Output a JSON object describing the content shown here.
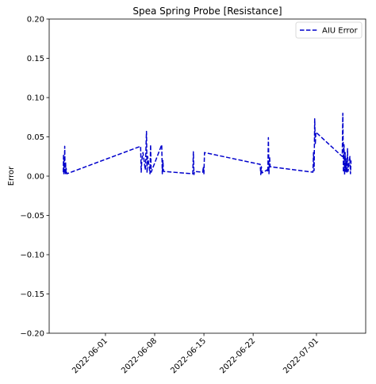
{
  "chart_data": {
    "type": "line",
    "title": "Spea Spring Probe [Resistance]",
    "xlabel": "",
    "ylabel": "Error",
    "x_axis_type": "date",
    "xlim": [
      "2022-05-24",
      "2022-07-08"
    ],
    "ylim": [
      -0.2,
      0.2
    ],
    "yticks": [
      "−0.20",
      "−0.15",
      "−0.10",
      "−0.05",
      "0.00",
      "0.05",
      "0.10",
      "0.15",
      "0.20"
    ],
    "yticks_values": [
      -0.2,
      -0.15,
      -0.1,
      -0.05,
      0.0,
      0.05,
      0.1,
      0.15,
      0.2
    ],
    "xticks": [
      "2022-06-01",
      "2022-06-08",
      "2022-06-15",
      "2022-06-22",
      "2022-07-01"
    ],
    "grid": false,
    "legend": {
      "position": "top-right",
      "entries": [
        "AIU Error"
      ]
    },
    "series": [
      {
        "name": "AIU Error",
        "color": "#0000cc",
        "line_style": "dashed",
        "x": [
          "2022-05-26 00:00",
          "2022-05-26 01:00",
          "2022-05-26 02:00",
          "2022-05-26 03:00",
          "2022-05-26 04:00",
          "2022-05-26 05:00",
          "2022-05-26 06:00",
          "2022-05-26 07:00",
          "2022-05-26 08:00",
          "2022-05-26 09:00",
          "2022-05-26 10:00",
          "2022-05-26 12:00",
          "2022-06-06 00:00",
          "2022-06-06 02:00",
          "2022-06-06 04:00",
          "2022-06-06 08:00",
          "2022-06-06 16:00",
          "2022-06-06 20:00",
          "2022-06-06 22:00",
          "2022-06-07 00:00",
          "2022-06-07 06:00",
          "2022-06-07 08:00",
          "2022-06-07 10:00",
          "2022-06-07 12:00",
          "2022-06-09 00:00",
          "2022-06-09 02:00",
          "2022-06-09 04:00",
          "2022-06-09 06:00",
          "2022-06-13 10:00",
          "2022-06-13 12:00",
          "2022-06-13 14:00",
          "2022-06-13 16:00",
          "2022-06-14 20:00",
          "2022-06-14 22:00",
          "2022-06-15 00:00",
          "2022-06-15 02:00",
          "2022-06-23 00:00",
          "2022-06-23 02:00",
          "2022-06-23 04:00",
          "2022-06-23 06:00",
          "2022-06-24 00:00",
          "2022-06-24 02:00",
          "2022-06-24 04:00",
          "2022-06-24 06:00",
          "2022-06-24 08:00",
          "2022-06-24 10:00",
          "2022-06-30 12:00",
          "2022-06-30 14:00",
          "2022-06-30 16:00",
          "2022-06-30 18:00",
          "2022-06-30 20:00",
          "2022-06-30 22:00",
          "2022-07-04 16:00",
          "2022-07-04 18:00",
          "2022-07-04 20:00",
          "2022-07-04 22:00",
          "2022-07-05 00:00",
          "2022-07-05 02:00",
          "2022-07-05 04:00",
          "2022-07-05 06:00",
          "2022-07-05 08:00",
          "2022-07-05 10:00",
          "2022-07-05 12:00",
          "2022-07-05 18:00",
          "2022-07-05 20:00",
          "2022-07-05 22:00"
        ],
        "y": [
          0.005,
          0.028,
          0.003,
          0.022,
          0.006,
          0.038,
          0.012,
          0.002,
          0.018,
          0.004,
          0.01,
          0.003,
          0.038,
          0.005,
          0.02,
          0.03,
          0.008,
          0.057,
          0.004,
          0.025,
          0.01,
          0.003,
          0.04,
          0.005,
          0.04,
          0.003,
          0.02,
          0.006,
          0.003,
          0.031,
          0.002,
          0.006,
          0.005,
          0.012,
          0.003,
          0.03,
          0.015,
          0.002,
          0.012,
          0.004,
          0.008,
          0.005,
          0.049,
          0.003,
          0.025,
          0.012,
          0.005,
          0.03,
          0.007,
          0.073,
          0.04,
          0.056,
          0.025,
          0.08,
          0.005,
          0.04,
          0.002,
          0.03,
          0.006,
          0.022,
          0.004,
          0.035,
          0.006,
          0.025,
          0.003,
          0.02
        ]
      }
    ]
  }
}
